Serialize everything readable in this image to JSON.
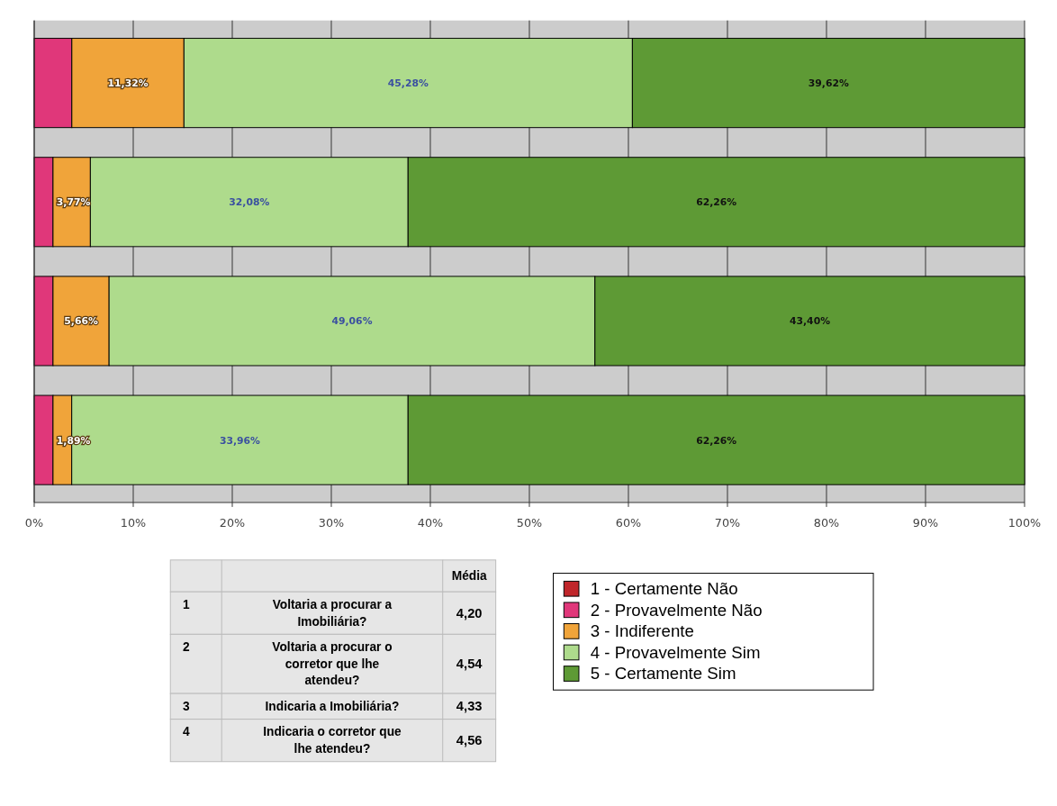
{
  "chart_data": {
    "type": "bar",
    "orientation": "horizontal",
    "stacked": true,
    "categories": [
      null,
      null,
      null,
      null
    ],
    "series": [
      {
        "name": "1 - Certamente Não",
        "color": "#c0262b",
        "values": [
          0,
          0,
          0,
          0
        ],
        "value_labels": [
          null,
          null,
          null,
          null
        ]
      },
      {
        "name": "2 - Provavelmente Não",
        "color": "#e0377a",
        "values": [
          3.8,
          1.9,
          1.9,
          1.9
        ],
        "value_labels": [
          null,
          null,
          null,
          null
        ]
      },
      {
        "name": "3 - Indiferente",
        "color": "#f0a43a",
        "values": [
          11.32,
          3.77,
          5.66,
          1.89
        ],
        "value_labels": [
          "11,32%",
          "3,77%",
          "5,66%",
          "1,89%"
        ]
      },
      {
        "name": "4 - Provavelmente Sim",
        "color": "#aedb8c",
        "values": [
          45.28,
          32.08,
          49.06,
          33.96
        ],
        "value_labels": [
          "45,28%",
          "32,08%",
          "49,06%",
          "33,96%"
        ]
      },
      {
        "name": "5 - Certamente Sim",
        "color": "#5e9a35",
        "values": [
          39.62,
          62.26,
          43.4,
          62.26
        ],
        "value_labels": [
          "39,62%",
          "62,26%",
          "43,40%",
          "62,26%"
        ]
      }
    ],
    "xlim": [
      0,
      100
    ],
    "xticks": [
      {
        "value": 0,
        "label": "0%"
      },
      {
        "value": 10,
        "label": "10%"
      },
      {
        "value": 20,
        "label": "20%"
      },
      {
        "value": 30,
        "label": "30%"
      },
      {
        "value": 40,
        "label": "40%"
      },
      {
        "value": 50,
        "label": "50%"
      },
      {
        "value": 60,
        "label": "60%"
      },
      {
        "value": 70,
        "label": "70%"
      },
      {
        "value": 80,
        "label": "80%"
      },
      {
        "value": 90,
        "label": "90%"
      },
      {
        "value": 100,
        "label": "100%"
      }
    ],
    "grid": "x",
    "legend": "bottom right",
    "annotations": [
      "Média",
      "1",
      "Voltaria a procurar a Imobiliária?",
      "4,20",
      "2",
      "Voltaria a procurar o corretor que lhe atendeu?",
      "4,54",
      "3",
      "Indicaria a Imobiliária?",
      "4,33",
      "4",
      "Indicaria o corretor que lhe atendeu?",
      "4,56"
    ]
  }
}
